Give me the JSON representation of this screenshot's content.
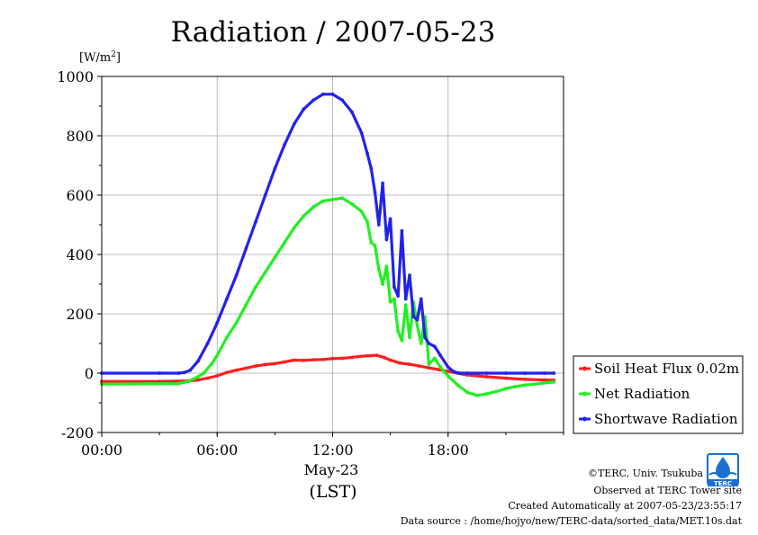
{
  "chart_data": {
    "type": "line",
    "title": "Radiation / 2007-05-23",
    "ylabel_unit": "[W/m",
    "ylabel_sup": "2",
    "ylabel_close": "]",
    "xlabel_date": "May-23",
    "xlabel_tz": "(LST)",
    "ylim": [
      -200,
      1000
    ],
    "xlim": [
      0,
      24
    ],
    "yticks": [
      -200,
      0,
      200,
      400,
      600,
      800,
      1000
    ],
    "ytick_labels": [
      "-200",
      "0",
      "200",
      "400",
      "600",
      "800",
      "1000"
    ],
    "xticks": [
      0,
      6,
      12,
      18
    ],
    "xtick_labels": [
      "00:00",
      "06:00",
      "12:00",
      "18:00"
    ],
    "grid": true,
    "legend_position": "right-bottom",
    "series": [
      {
        "name": "Soil Heat Flux 0.02m",
        "color": "#ff2020",
        "x": [
          0,
          3,
          4.5,
          5,
          5.5,
          6,
          6.5,
          7,
          7.5,
          8,
          8.5,
          9,
          9.5,
          10,
          10.5,
          11,
          11.5,
          12,
          12.5,
          13,
          13.5,
          14,
          14.3,
          14.7,
          15,
          15.5,
          16,
          16.5,
          17,
          17.5,
          18,
          18.5,
          19,
          20,
          21,
          22,
          23,
          23.5
        ],
        "y": [
          -28,
          -28,
          -26,
          -23,
          -17,
          -9,
          2,
          10,
          17,
          24,
          29,
          32,
          38,
          44,
          43,
          45,
          46,
          49,
          50,
          53,
          57,
          59,
          60,
          52,
          44,
          34,
          30,
          24,
          18,
          12,
          6,
          0,
          -6,
          -12,
          -17,
          -21,
          -23,
          -24
        ]
      },
      {
        "name": "Net Radiation",
        "color": "#22ee22",
        "x": [
          0,
          4,
          4.5,
          5,
          5.3,
          5.7,
          6,
          6.5,
          7,
          7.5,
          8,
          8.5,
          9,
          9.5,
          10,
          10.5,
          11,
          11.5,
          12,
          12.5,
          13,
          13.5,
          13.8,
          14,
          14.2,
          14.4,
          14.6,
          14.8,
          15,
          15.2,
          15.4,
          15.6,
          15.8,
          16,
          16.2,
          16.4,
          16.6,
          16.8,
          17,
          17.3,
          17.6,
          18,
          18.5,
          19,
          19.5,
          20,
          20.5,
          21,
          21.5,
          22,
          22.5,
          23,
          23.5
        ],
        "y": [
          -37,
          -35,
          -28,
          -12,
          0,
          30,
          60,
          120,
          170,
          230,
          290,
          340,
          390,
          440,
          490,
          530,
          560,
          580,
          585,
          590,
          570,
          545,
          510,
          440,
          430,
          350,
          300,
          360,
          240,
          250,
          140,
          110,
          230,
          120,
          240,
          160,
          100,
          190,
          30,
          50,
          20,
          -10,
          -40,
          -65,
          -75,
          -70,
          -62,
          -52,
          -45,
          -40,
          -37,
          -33,
          -30
        ]
      },
      {
        "name": "Shortwave Radiation",
        "color": "#2222ee",
        "x": [
          0,
          3,
          4,
          4.3,
          4.6,
          5,
          5.5,
          6,
          6.5,
          7,
          7.5,
          8,
          8.5,
          9,
          9.5,
          10,
          10.5,
          11,
          11.5,
          12,
          12.5,
          13,
          13.5,
          13.8,
          14,
          14.2,
          14.4,
          14.6,
          14.8,
          15,
          15.2,
          15.4,
          15.6,
          15.8,
          16,
          16.2,
          16.4,
          16.6,
          16.8,
          17,
          17.3,
          17.6,
          18,
          18.3,
          18.6,
          19,
          20,
          21,
          22,
          23,
          23.5
        ],
        "y": [
          0,
          0,
          0,
          2,
          10,
          40,
          100,
          170,
          250,
          330,
          420,
          510,
          600,
          690,
          770,
          840,
          890,
          920,
          940,
          940,
          920,
          880,
          810,
          740,
          690,
          610,
          500,
          640,
          450,
          520,
          290,
          260,
          480,
          250,
          330,
          190,
          180,
          250,
          120,
          100,
          90,
          60,
          20,
          5,
          0,
          0,
          0,
          0,
          0,
          0,
          0
        ]
      }
    ]
  },
  "credits": {
    "copyright": "©TERC, Univ. Tsukuba",
    "observed": "Observed at TERC Tower site",
    "created": "Created Automatically at 2007-05-23/23:55:17",
    "source": "Data source : /home/hojyo/new/TERC-data/sorted_data/MET.10s.dat",
    "logo_text": "TERC"
  },
  "colors": {
    "logo_blue": "#1a6fd0",
    "grid": "#aaaaaa"
  }
}
